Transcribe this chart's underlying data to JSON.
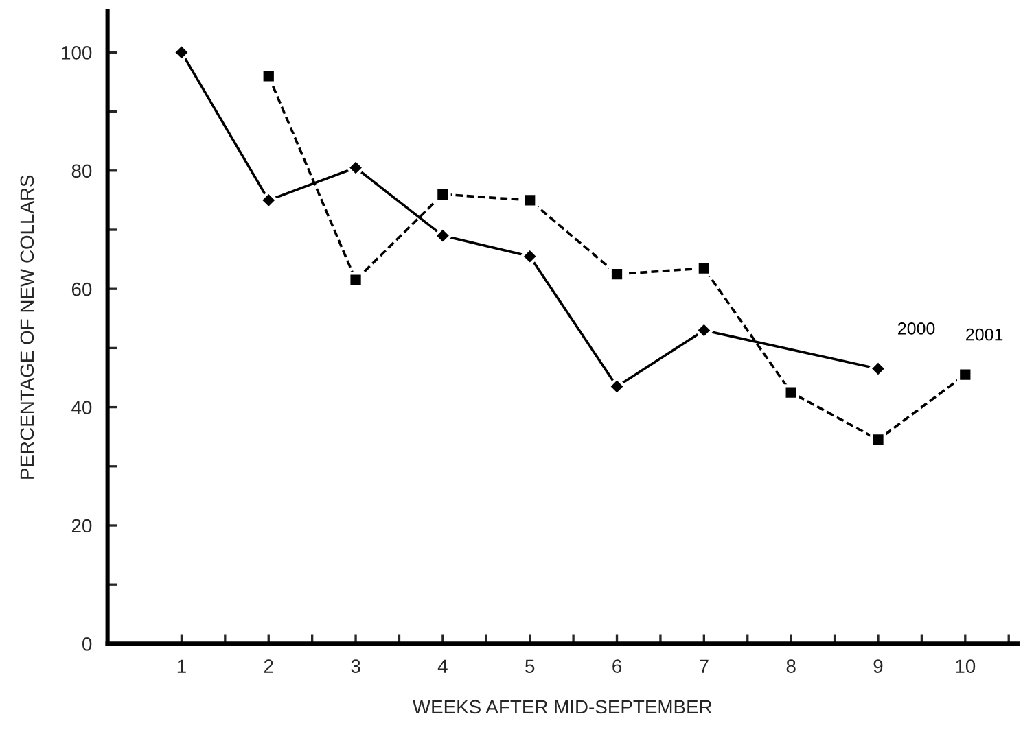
{
  "chart_data": {
    "type": "line",
    "xlabel": "WEEKS AFTER MID-SEPTEMBER",
    "ylabel": "PERCENTAGE OF NEW COLLARS",
    "series": [
      {
        "name": "2000",
        "color": "#000000",
        "x": [
          1,
          2,
          3,
          4,
          5,
          6,
          7,
          9
        ],
        "values": [
          100,
          75,
          80.5,
          69,
          65.5,
          43.5,
          53,
          46.5
        ],
        "marker": "diamond",
        "line_style": "solid"
      },
      {
        "name": "2001",
        "color": "#000000",
        "x": [
          2,
          3,
          4,
          5,
          6,
          7,
          8,
          9,
          10
        ],
        "values": [
          96,
          61.5,
          76,
          75,
          62.5,
          63.5,
          42.5,
          34.5,
          45.5
        ],
        "marker": "square",
        "line_style": "dashed"
      }
    ],
    "xlim": [
      0.15,
      10.6
    ],
    "xticks": [
      1,
      {
        "value": 1.5,
        "label": null
      },
      2,
      {
        "value": 2.5,
        "label": null
      },
      3,
      {
        "value": 3.5,
        "label": null
      },
      4,
      {
        "value": 4.5,
        "label": null
      },
      5,
      {
        "value": 5.5,
        "label": null
      },
      6,
      {
        "value": 6.5,
        "label": null
      },
      7,
      {
        "value": 7.5,
        "label": null
      },
      8,
      {
        "value": 8.5,
        "label": null
      },
      9,
      {
        "value": 9.5,
        "label": null
      },
      10,
      {
        "value": 10.5,
        "label": null
      }
    ],
    "ylim": [
      0,
      107
    ],
    "yticks": [
      0,
      {
        "value": 10,
        "label": null
      },
      20,
      {
        "value": 30,
        "label": null
      },
      40,
      {
        "value": 50,
        "label": null
      },
      60,
      {
        "value": 70,
        "label": null
      },
      80,
      {
        "value": 90,
        "label": null
      },
      100
    ],
    "grid": false,
    "legend": false
  }
}
